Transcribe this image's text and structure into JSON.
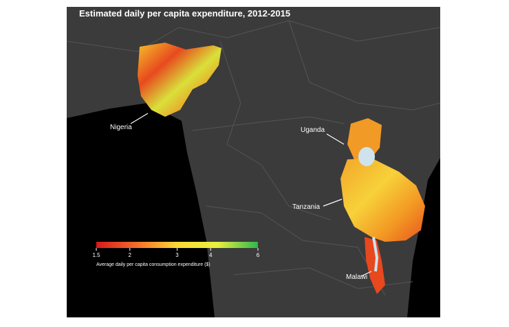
{
  "title": "Estimated daily per capita expenditure, 2012-2015",
  "labels": [
    "Nigeria",
    "Uganda",
    "Tanzania",
    "Malawi"
  ],
  "legend": {
    "caption": "Average daily per capita consumption expenditure ($)",
    "range": [
      1.5,
      6
    ],
    "ticks": [
      1.5,
      2,
      3,
      4,
      6
    ],
    "scale": "log",
    "colors": [
      "#d7191c",
      "#f46d2a",
      "#fdd835",
      "#e8f040",
      "#2db84b"
    ]
  }
}
